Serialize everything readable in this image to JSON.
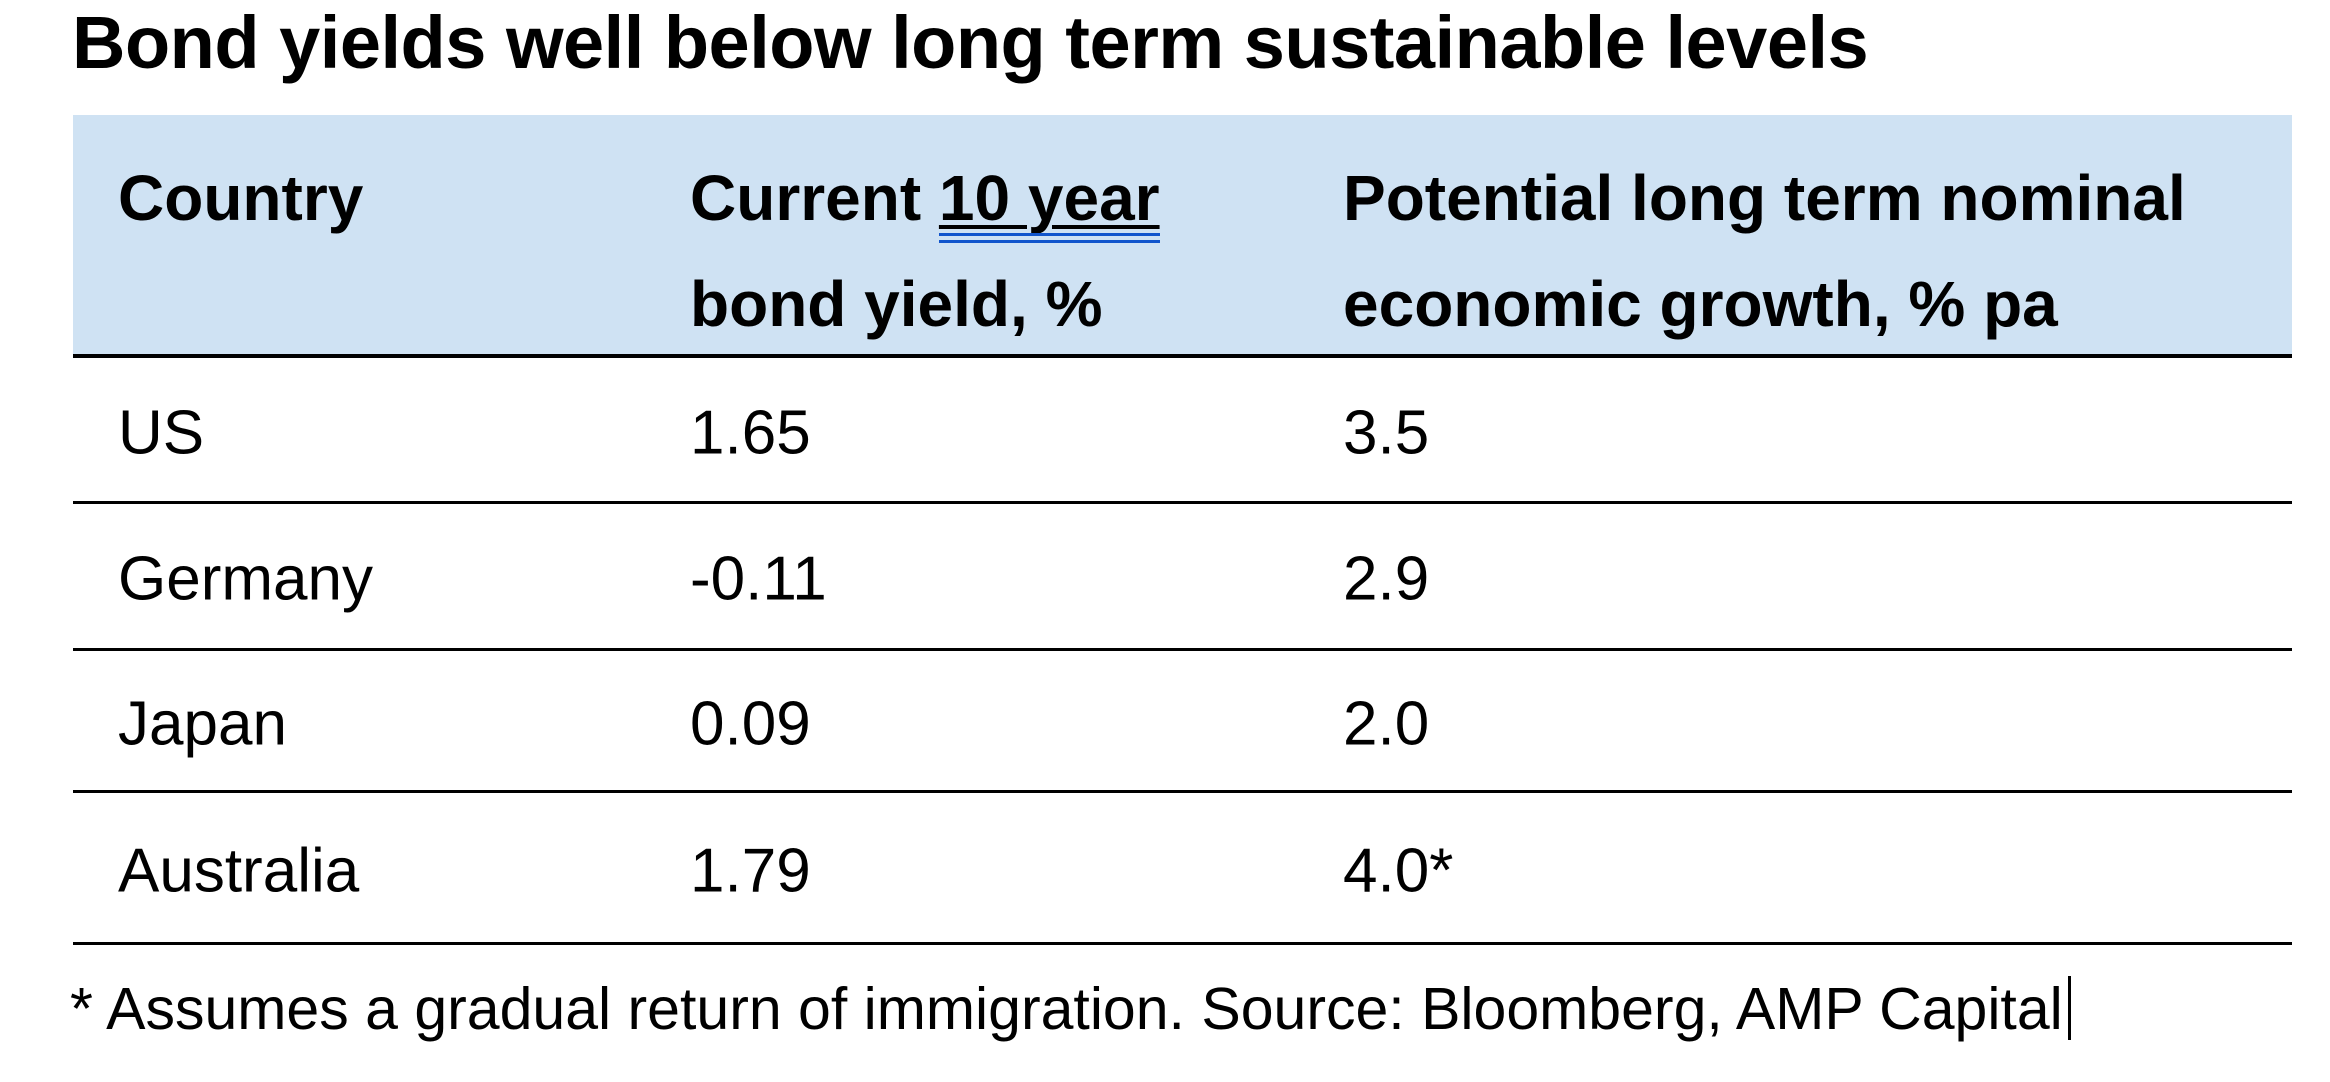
{
  "title": "Bond yields well below long term sustainable levels",
  "header": {
    "country": "Country",
    "col2_prefix": "Current",
    "col2_link": "10 year",
    "col2_line2": "bond yield, %",
    "col3_line1": "Potential long term nominal",
    "col3_line2": "economic growth, % pa"
  },
  "rows": [
    {
      "country": "US",
      "yield": "1.65",
      "growth": "3.5"
    },
    {
      "country": "Germany",
      "yield": "-0.11",
      "growth": "2.9"
    },
    {
      "country": "Japan",
      "yield": "0.09",
      "growth": "2.0"
    },
    {
      "country": "Australia",
      "yield": "1.79",
      "growth": "4.0*"
    }
  ],
  "footnote": "* Assumes a gradual return of immigration. Source: Bloomberg, AMP Capital",
  "colors": {
    "header_bg": "#cfe2f3",
    "rule": "#000000",
    "text": "#000000",
    "link_double_underline": "#1155cc"
  },
  "chart_data": {
    "type": "table",
    "title": "Bond yields well below long term sustainable levels",
    "columns": [
      "Country",
      "Current 10 year bond yield, %",
      "Potential long term nominal economic growth, % pa"
    ],
    "rows": [
      [
        "US",
        "1.65",
        "3.5"
      ],
      [
        "Germany",
        "-0.11",
        "2.9"
      ],
      [
        "Japan",
        "0.09",
        "2.0"
      ],
      [
        "Australia",
        "1.79",
        "4.0*"
      ]
    ],
    "footnote": "* Assumes a gradual return of immigration. Source: Bloomberg, AMP Capital"
  }
}
